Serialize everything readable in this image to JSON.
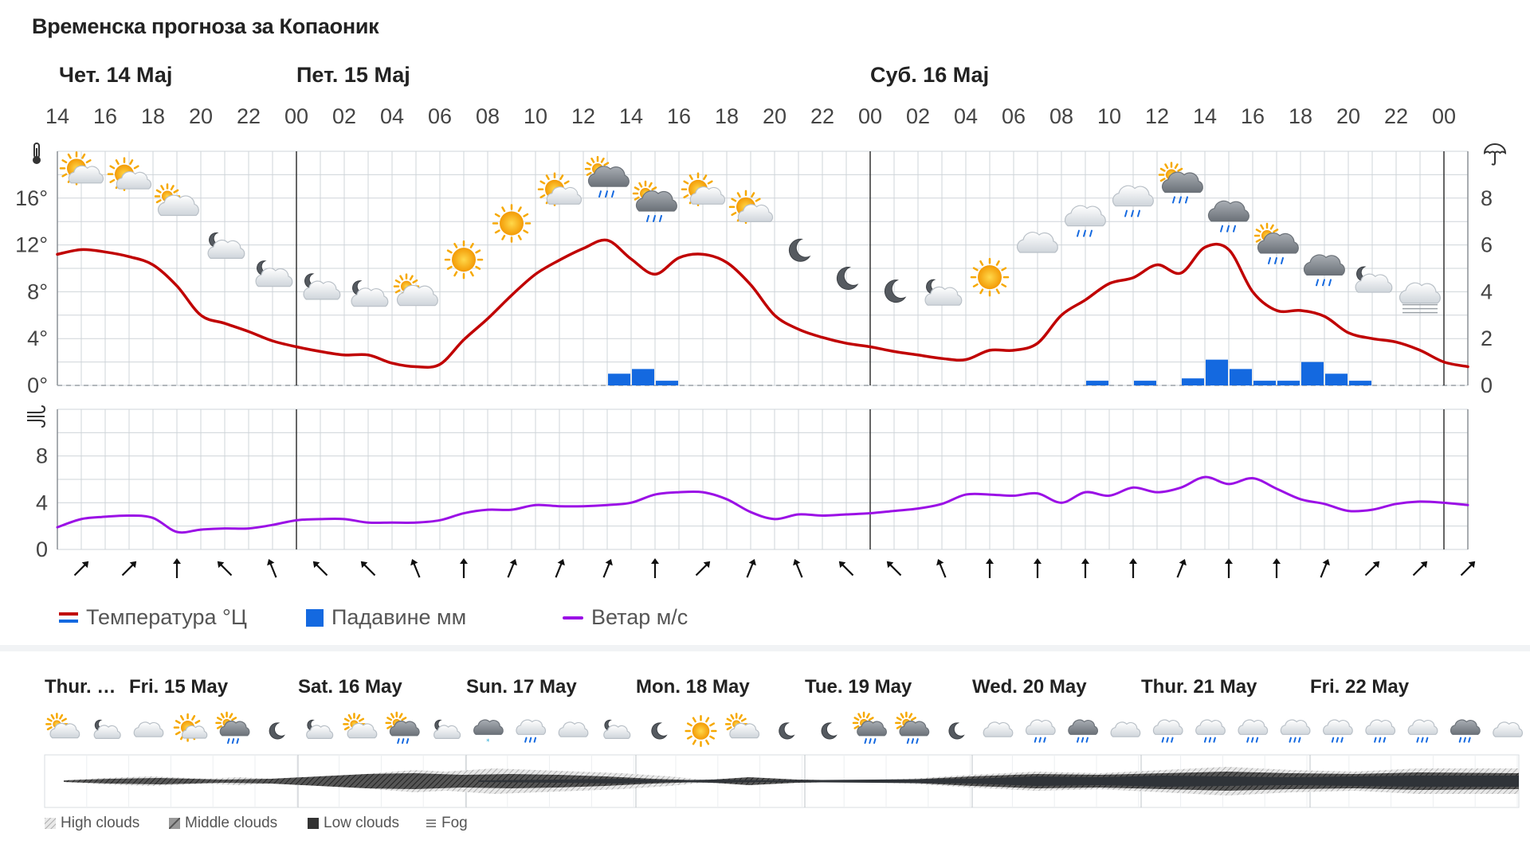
{
  "title": "Временска прогноза за Копаоник",
  "days": [
    {
      "label": "Чет. 14 Мај",
      "hour_index": 0
    },
    {
      "label": "Пет. 15 Мај",
      "hour_index": 5
    },
    {
      "label": "Суб. 16 Мај",
      "hour_index": 17
    }
  ],
  "legend": {
    "temperature": "Температура °Ц",
    "precipitation": "Падавине мм",
    "wind": "Ветар м/с"
  },
  "colors": {
    "temperature": "#c00000",
    "precipitation": "#1469e0",
    "wind": "#9b10e6",
    "grid": "#cfd4d9",
    "day_divider": "#333333"
  },
  "chart_data": [
    {
      "type": "line",
      "title": "",
      "x": [
        "14",
        "16",
        "18",
        "20",
        "22",
        "00",
        "02",
        "04",
        "06",
        "08",
        "10",
        "12",
        "14",
        "16",
        "18",
        "20",
        "22",
        "00",
        "02",
        "04",
        "06",
        "08",
        "10",
        "12",
        "14",
        "16",
        "18",
        "20",
        "22",
        "00"
      ],
      "ylabel": "°",
      "ylim": [
        0,
        20
      ],
      "yticks": [
        "0°",
        "4°",
        "8°",
        "12°",
        "16°"
      ],
      "y2lim": [
        0,
        10
      ],
      "y2ticks": [
        "0",
        "2",
        "4",
        "6",
        "8"
      ],
      "series": [
        {
          "name": "Температура °Ц",
          "kind": "line",
          "points": [
            [
              0,
              11.2
            ],
            [
              1,
              11.6
            ],
            [
              2,
              11.4
            ],
            [
              3,
              11.0
            ],
            [
              4,
              10.3
            ],
            [
              5,
              8.5
            ],
            [
              6,
              6.0
            ],
            [
              7,
              5.3
            ],
            [
              8,
              4.6
            ],
            [
              9,
              3.8
            ],
            [
              10,
              3.3
            ],
            [
              11,
              2.9
            ],
            [
              12,
              2.6
            ],
            [
              13,
              2.6
            ],
            [
              14,
              1.9
            ],
            [
              15,
              1.6
            ],
            [
              16,
              1.8
            ],
            [
              17,
              3.9
            ],
            [
              18,
              5.7
            ],
            [
              19,
              7.7
            ],
            [
              20,
              9.5
            ],
            [
              21,
              10.7
            ],
            [
              22,
              11.7
            ],
            [
              23,
              12.4
            ],
            [
              24,
              10.8
            ],
            [
              25,
              9.5
            ],
            [
              26,
              10.9
            ],
            [
              27,
              11.2
            ],
            [
              28,
              10.5
            ],
            [
              29,
              8.6
            ],
            [
              30,
              6.0
            ],
            [
              31,
              4.8
            ],
            [
              32,
              4.1
            ],
            [
              33,
              3.6
            ],
            [
              34,
              3.3
            ],
            [
              35,
              2.9
            ],
            [
              36,
              2.6
            ],
            [
              37,
              2.3
            ],
            [
              38,
              2.2
            ],
            [
              39,
              3.0
            ],
            [
              40,
              3.0
            ],
            [
              41,
              3.6
            ],
            [
              42,
              6.0
            ],
            [
              43,
              7.3
            ],
            [
              44,
              8.7
            ],
            [
              45,
              9.2
            ],
            [
              46,
              10.3
            ],
            [
              47,
              9.6
            ],
            [
              48,
              11.8
            ],
            [
              49,
              11.6
            ],
            [
              50,
              8.0
            ],
            [
              51,
              6.4
            ],
            [
              52,
              6.4
            ],
            [
              53,
              5.9
            ],
            [
              54,
              4.5
            ],
            [
              55,
              4.0
            ],
            [
              56,
              3.7
            ],
            [
              57,
              3.0
            ],
            [
              58,
              2.0
            ],
            [
              59,
              1.6
            ]
          ]
        },
        {
          "name": "Падавине мм",
          "kind": "bar",
          "points": [
            [
              23,
              0.5
            ],
            [
              24,
              0.7
            ],
            [
              25,
              0.2
            ],
            [
              43,
              0.2
            ],
            [
              45,
              0.2
            ],
            [
              47,
              0.3
            ],
            [
              48,
              1.1
            ],
            [
              49,
              0.7
            ],
            [
              50,
              0.2
            ],
            [
              51,
              0.2
            ],
            [
              52,
              1.0
            ],
            [
              53,
              0.5
            ],
            [
              54,
              0.2
            ]
          ]
        }
      ]
    },
    {
      "type": "line",
      "title": "",
      "x": [
        "14",
        "16",
        "18",
        "20",
        "22",
        "00",
        "02",
        "04",
        "06",
        "08",
        "10",
        "12",
        "14",
        "16",
        "18",
        "20",
        "22",
        "00",
        "02",
        "04",
        "06",
        "08",
        "10",
        "12",
        "14",
        "16",
        "18",
        "20",
        "22",
        "00"
      ],
      "ylim": [
        0,
        12
      ],
      "yticks": [
        "0",
        "4",
        "8"
      ],
      "series": [
        {
          "name": "Ветар м/с",
          "points": [
            [
              0,
              1.9
            ],
            [
              1,
              2.6
            ],
            [
              2,
              2.8
            ],
            [
              3,
              2.9
            ],
            [
              4,
              2.7
            ],
            [
              5,
              1.5
            ],
            [
              6,
              1.7
            ],
            [
              7,
              1.8
            ],
            [
              8,
              1.8
            ],
            [
              9,
              2.1
            ],
            [
              10,
              2.5
            ],
            [
              11,
              2.6
            ],
            [
              12,
              2.6
            ],
            [
              13,
              2.3
            ],
            [
              14,
              2.3
            ],
            [
              15,
              2.3
            ],
            [
              16,
              2.5
            ],
            [
              17,
              3.1
            ],
            [
              18,
              3.4
            ],
            [
              19,
              3.4
            ],
            [
              20,
              3.8
            ],
            [
              21,
              3.7
            ],
            [
              22,
              3.7
            ],
            [
              23,
              3.8
            ],
            [
              24,
              4.0
            ],
            [
              25,
              4.7
            ],
            [
              26,
              4.9
            ],
            [
              27,
              4.9
            ],
            [
              28,
              4.3
            ],
            [
              29,
              3.2
            ],
            [
              30,
              2.6
            ],
            [
              31,
              3.0
            ],
            [
              32,
              2.9
            ],
            [
              33,
              3.0
            ],
            [
              34,
              3.1
            ],
            [
              35,
              3.3
            ],
            [
              36,
              3.5
            ],
            [
              37,
              3.9
            ],
            [
              38,
              4.7
            ],
            [
              39,
              4.7
            ],
            [
              40,
              4.6
            ],
            [
              41,
              4.8
            ],
            [
              42,
              4.0
            ],
            [
              43,
              4.9
            ],
            [
              44,
              4.6
            ],
            [
              45,
              5.3
            ],
            [
              46,
              4.9
            ],
            [
              47,
              5.3
            ],
            [
              48,
              6.2
            ],
            [
              49,
              5.6
            ],
            [
              50,
              6.1
            ],
            [
              51,
              5.2
            ],
            [
              52,
              4.3
            ],
            [
              53,
              3.9
            ],
            [
              54,
              3.3
            ],
            [
              55,
              3.4
            ],
            [
              56,
              3.9
            ],
            [
              57,
              4.1
            ],
            [
              58,
              4.0
            ],
            [
              59,
              3.8
            ]
          ]
        }
      ]
    }
  ],
  "weather_icons": [
    {
      "i": 1,
      "t": 16.1,
      "icon": "partly-sunny-icon"
    },
    {
      "i": 3,
      "t": 15.6,
      "icon": "partly-sunny-icon"
    },
    {
      "i": 5,
      "t": 13.3,
      "icon": "partly-cloudy-day-icon"
    },
    {
      "i": 7,
      "t": 9.7,
      "icon": "partly-cloudy-night-icon"
    },
    {
      "i": 9,
      "t": 7.3,
      "icon": "partly-cloudy-night-icon"
    },
    {
      "i": 11,
      "t": 6.2,
      "icon": "partly-cloudy-night-icon"
    },
    {
      "i": 13,
      "t": 5.6,
      "icon": "partly-cloudy-night-icon"
    },
    {
      "i": 15,
      "t": 5.6,
      "icon": "partly-cloudy-day-icon"
    },
    {
      "i": 17,
      "t": 8.7,
      "icon": "sun-icon"
    },
    {
      "i": 19,
      "t": 11.8,
      "icon": "sun-icon"
    },
    {
      "i": 21,
      "t": 14.3,
      "icon": "partly-sunny-icon"
    },
    {
      "i": 23,
      "t": 15.5,
      "icon": "partly-sunny-rain-icon"
    },
    {
      "i": 25,
      "t": 13.4,
      "icon": "partly-sunny-rain-icon"
    },
    {
      "i": 27,
      "t": 14.3,
      "icon": "partly-sunny-icon"
    },
    {
      "i": 29,
      "t": 12.8,
      "icon": "partly-sunny-icon"
    },
    {
      "i": 31,
      "t": 9.5,
      "icon": "moon-icon"
    },
    {
      "i": 33,
      "t": 7.1,
      "icon": "moon-icon"
    },
    {
      "i": 35,
      "t": 6.0,
      "icon": "moon-icon"
    },
    {
      "i": 37,
      "t": 5.7,
      "icon": "partly-cloudy-night-icon"
    },
    {
      "i": 39,
      "t": 7.2,
      "icon": "sun-icon"
    },
    {
      "i": 41,
      "t": 10.0,
      "icon": "cloud-icon"
    },
    {
      "i": 43,
      "t": 12.0,
      "icon": "cloud-rain-icon"
    },
    {
      "i": 45,
      "t": 13.7,
      "icon": "cloud-rain-icon"
    },
    {
      "i": 47,
      "t": 15.0,
      "icon": "partly-sunny-rain-icon"
    },
    {
      "i": 49,
      "t": 12.4,
      "icon": "dark-cloud-rain-icon"
    },
    {
      "i": 51,
      "t": 9.8,
      "icon": "partly-sunny-rain-icon"
    },
    {
      "i": 53,
      "t": 7.8,
      "icon": "dark-cloud-rain-icon"
    },
    {
      "i": 55,
      "t": 6.8,
      "icon": "partly-cloudy-night-icon"
    },
    {
      "i": 57,
      "t": 5.4,
      "icon": "fog-icon"
    }
  ],
  "wind_arrows": [
    {
      "i": 1,
      "dir": "NE"
    },
    {
      "i": 3,
      "dir": "NE"
    },
    {
      "i": 5,
      "dir": "N"
    },
    {
      "i": 7,
      "dir": "NW"
    },
    {
      "i": 9,
      "dir": "NNW"
    },
    {
      "i": 11,
      "dir": "NW"
    },
    {
      "i": 13,
      "dir": "NW"
    },
    {
      "i": 15,
      "dir": "NNW"
    },
    {
      "i": 17,
      "dir": "N"
    },
    {
      "i": 19,
      "dir": "NNE"
    },
    {
      "i": 21,
      "dir": "NNE"
    },
    {
      "i": 23,
      "dir": "NNE"
    },
    {
      "i": 25,
      "dir": "N"
    },
    {
      "i": 27,
      "dir": "NE"
    },
    {
      "i": 29,
      "dir": "NNE"
    },
    {
      "i": 31,
      "dir": "NNW"
    },
    {
      "i": 33,
      "dir": "NW"
    },
    {
      "i": 35,
      "dir": "NW"
    },
    {
      "i": 37,
      "dir": "NNW"
    },
    {
      "i": 39,
      "dir": "N"
    },
    {
      "i": 41,
      "dir": "N"
    },
    {
      "i": 43,
      "dir": "N"
    },
    {
      "i": 45,
      "dir": "N"
    },
    {
      "i": 47,
      "dir": "NNE"
    },
    {
      "i": 49,
      "dir": "N"
    },
    {
      "i": 51,
      "dir": "N"
    },
    {
      "i": 53,
      "dir": "NNE"
    },
    {
      "i": 55,
      "dir": "NE"
    },
    {
      "i": 57,
      "dir": "NE"
    },
    {
      "i": 59,
      "dir": "NE"
    }
  ],
  "overview": {
    "days": [
      "Thur. …",
      "Fri. 15 May",
      "Sat. 16 May",
      "Sun. 17 May",
      "Mon. 18 May",
      "Tue. 19 May",
      "Wed. 20 May",
      "Thur. 21 May",
      "Fri. 22 May"
    ],
    "icons": [
      "partly-cloudy-day-icon",
      "partly-cloudy-night-icon",
      "cloud-icon",
      "partly-sunny-icon",
      "partly-sunny-rain-icon",
      "moon-icon",
      "partly-cloudy-night-icon",
      "partly-cloudy-day-icon",
      "partly-sunny-rain-icon",
      "partly-cloudy-night-icon",
      "snow-cloud-icon",
      "cloud-rain-icon",
      "cloud-icon",
      "partly-cloudy-night-icon",
      "moon-icon",
      "sun-icon",
      "partly-cloudy-day-icon",
      "moon-icon",
      "moon-icon",
      "partly-sunny-rain-icon",
      "partly-sunny-rain-icon",
      "moon-icon",
      "cloud-icon",
      "cloud-rain-icon",
      "dark-cloud-rain-icon",
      "cloud-icon",
      "cloud-rain-icon",
      "cloud-rain-icon",
      "cloud-rain-icon",
      "cloud-rain-icon",
      "cloud-rain-icon",
      "cloud-rain-icon",
      "cloud-rain-icon",
      "dark-cloud-rain-icon",
      "cloud-icon"
    ],
    "cloud_legend": [
      "High clouds",
      "Middle clouds",
      "Low clouds",
      "Fog"
    ]
  }
}
